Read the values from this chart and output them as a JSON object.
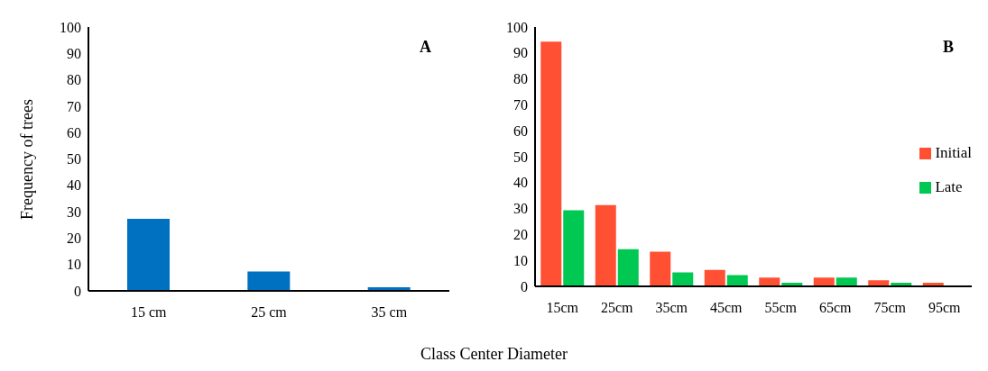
{
  "chart_data": [
    {
      "type": "bar",
      "annotations": [
        "A"
      ],
      "ylabel": "Frequency of trees",
      "xlabel": "Class Center Diameter",
      "categories": [
        "15 cm",
        "25 cm",
        "35 cm"
      ],
      "values": [
        27,
        7,
        1
      ],
      "color": "#0070c0",
      "ylim": [
        0,
        100
      ],
      "yticks": [
        0,
        10,
        20,
        30,
        40,
        50,
        60,
        70,
        80,
        90,
        100
      ],
      "grid": false,
      "legend": false
    },
    {
      "type": "bar",
      "annotations": [
        "B"
      ],
      "categories": [
        "15cm",
        "25cm",
        "35cm",
        "45cm",
        "55cm",
        "65cm",
        "75cm",
        "95cm"
      ],
      "series": [
        {
          "name": "Initial",
          "color": "#ff5033",
          "values": [
            94,
            31,
            13,
            6,
            3,
            3,
            2,
            1
          ]
        },
        {
          "name": "Late",
          "color": "#00c853",
          "values": [
            29,
            14,
            5,
            4,
            1,
            3,
            1,
            null
          ]
        }
      ],
      "ylim": [
        0,
        100
      ],
      "yticks": [
        0,
        10,
        20,
        30,
        40,
        50,
        60,
        70,
        80,
        90,
        100
      ],
      "grid": false,
      "legend": "right"
    }
  ]
}
